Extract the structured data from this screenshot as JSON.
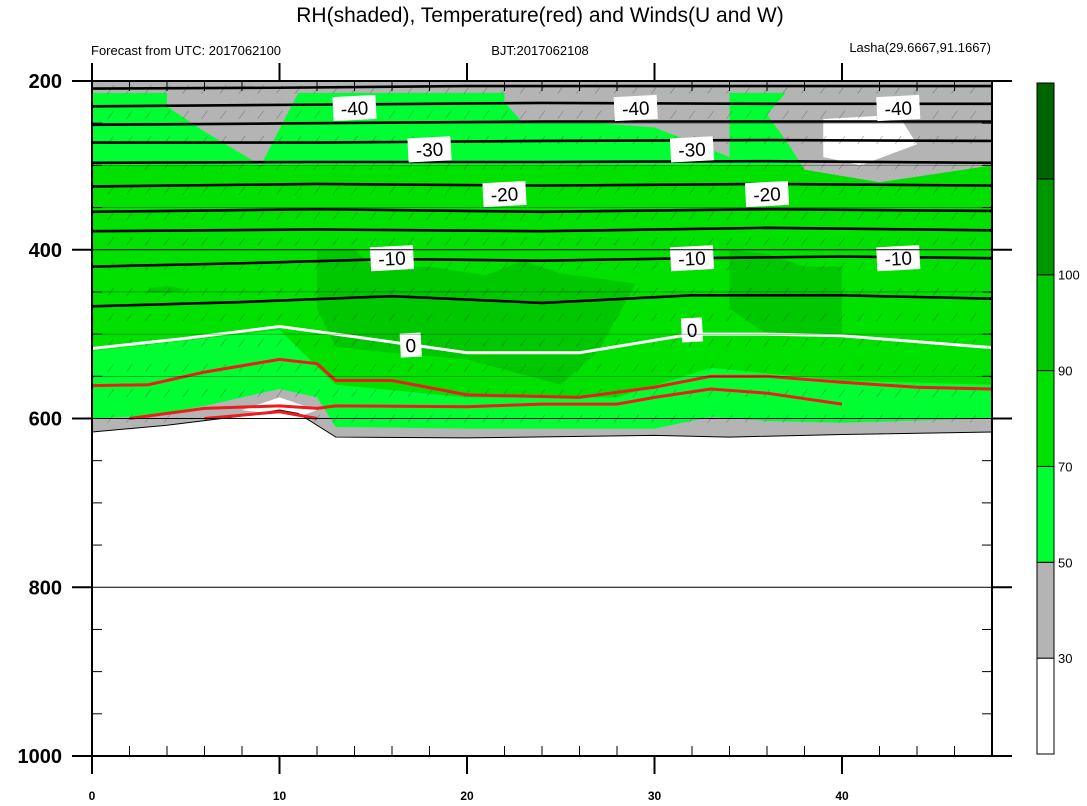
{
  "chart_data": {
    "type": "heatmap",
    "title": "RH(shaded), Temperature(red) and Winds(U and W)",
    "subtitle_left": "Forecast from UTC: 2017062100",
    "subtitle_center": "BJT:2017062108",
    "subtitle_right": "Lasha(29.6667,91.1667)",
    "xlim": [
      0,
      48
    ],
    "ylim": [
      1000,
      200
    ],
    "x_ticks": [
      "0",
      "10",
      "20",
      "30",
      "40"
    ],
    "y_ticks": [
      "200",
      "400",
      "600",
      "800",
      "1000"
    ],
    "colorbar": {
      "levels": [
        "30",
        "50",
        "70",
        "90",
        "100"
      ],
      "colors": [
        "#ffffff",
        "#b4b4b4",
        "#00ff32",
        "#00e100",
        "#00c800",
        "#009600",
        "#006400"
      ]
    },
    "surface_pressure": [
      {
        "x": 0,
        "p": 616
      },
      {
        "x": 4,
        "p": 608
      },
      {
        "x": 8,
        "p": 597
      },
      {
        "x": 10,
        "p": 590
      },
      {
        "x": 11,
        "p": 594
      },
      {
        "x": 12,
        "p": 608
      },
      {
        "x": 13,
        "p": 622
      },
      {
        "x": 20,
        "p": 623
      },
      {
        "x": 30,
        "p": 620
      },
      {
        "x": 34,
        "p": 622
      },
      {
        "x": 40,
        "p": 619
      },
      {
        "x": 48,
        "p": 616
      }
    ],
    "temperature_contours": [
      {
        "label": "-40",
        "points": [
          [
            0,
            209
          ],
          [
            10,
            208
          ],
          [
            20,
            206
          ],
          [
            30,
            206
          ],
          [
            40,
            206
          ],
          [
            48,
            206
          ]
        ],
        "label_x": 14,
        "label_p": 232
      },
      {
        "label": "",
        "points": [
          [
            0,
            230
          ],
          [
            12,
            228
          ],
          [
            24,
            226
          ],
          [
            36,
            227
          ],
          [
            48,
            227
          ]
        ]
      },
      {
        "label": "",
        "points": [
          [
            0,
            252
          ],
          [
            12,
            250
          ],
          [
            24,
            248
          ],
          [
            36,
            248
          ],
          [
            48,
            248
          ]
        ]
      },
      {
        "label": "-30",
        "points": [
          [
            0,
            273
          ],
          [
            12,
            273
          ],
          [
            24,
            271
          ],
          [
            36,
            270
          ],
          [
            48,
            271
          ]
        ],
        "label_x": 18,
        "label_p": 281
      },
      {
        "label": "",
        "points": [
          [
            0,
            297
          ],
          [
            12,
            296
          ],
          [
            24,
            296
          ],
          [
            36,
            295
          ],
          [
            48,
            297
          ]
        ]
      },
      {
        "label": "-20",
        "points": [
          [
            0,
            325
          ],
          [
            12,
            322
          ],
          [
            24,
            324
          ],
          [
            36,
            322
          ],
          [
            48,
            324
          ]
        ],
        "label_x": 22,
        "label_p": 334
      },
      {
        "label": "",
        "points": [
          [
            0,
            355
          ],
          [
            12,
            352
          ],
          [
            24,
            355
          ],
          [
            36,
            352
          ],
          [
            48,
            354
          ]
        ]
      },
      {
        "label": "",
        "points": [
          [
            0,
            378
          ],
          [
            12,
            376
          ],
          [
            24,
            378
          ],
          [
            36,
            374
          ],
          [
            48,
            377
          ]
        ]
      },
      {
        "label": "-10",
        "points": [
          [
            0,
            420
          ],
          [
            8,
            416
          ],
          [
            16,
            411
          ],
          [
            24,
            413
          ],
          [
            32,
            410
          ],
          [
            40,
            408
          ],
          [
            48,
            410
          ]
        ],
        "label_x": 16,
        "label_p": 410
      },
      {
        "label": "",
        "points": [
          [
            0,
            467
          ],
          [
            8,
            462
          ],
          [
            16,
            455
          ],
          [
            24,
            463
          ],
          [
            32,
            454
          ],
          [
            40,
            454
          ],
          [
            48,
            458
          ]
        ]
      }
    ],
    "zero_isotherm": {
      "label": "0",
      "points": [
        [
          0,
          517
        ],
        [
          5,
          505
        ],
        [
          10,
          491
        ],
        [
          13,
          500
        ],
        [
          20,
          522
        ],
        [
          26,
          522
        ],
        [
          32,
          500
        ],
        [
          36,
          500
        ],
        [
          40,
          502
        ],
        [
          48,
          516
        ]
      ],
      "label_x": 17,
      "label_p": 513
    },
    "red_contours": [
      {
        "points": [
          [
            0,
            561
          ],
          [
            3,
            560
          ],
          [
            6,
            545
          ],
          [
            10,
            530
          ],
          [
            12,
            535
          ],
          [
            13,
            555
          ],
          [
            16,
            555
          ],
          [
            20,
            572
          ],
          [
            26,
            575
          ],
          [
            30,
            563
          ],
          [
            33,
            550
          ],
          [
            36,
            550
          ],
          [
            40,
            557
          ],
          [
            44,
            563
          ],
          [
            48,
            565
          ]
        ]
      },
      {
        "points": [
          [
            2,
            600
          ],
          [
            6,
            588
          ],
          [
            10,
            585
          ],
          [
            12,
            588
          ],
          [
            13,
            585
          ],
          [
            20,
            586
          ],
          [
            24,
            583
          ],
          [
            28,
            583
          ],
          [
            30,
            575
          ],
          [
            33,
            565
          ],
          [
            36,
            570
          ],
          [
            40,
            583
          ]
        ]
      },
      {
        "points": [
          [
            6,
            600
          ],
          [
            10,
            592
          ],
          [
            12,
            600
          ]
        ]
      }
    ],
    "contour_labels_right": [
      {
        "label": "-40",
        "x": 29,
        "p": 232
      },
      {
        "label": "-40",
        "x": 43,
        "p": 232
      },
      {
        "label": "-30",
        "x": 32,
        "p": 281
      },
      {
        "label": "-20",
        "x": 36,
        "p": 334
      },
      {
        "label": "-10",
        "x": 32,
        "p": 410
      },
      {
        "label": "-10",
        "x": 43,
        "p": 410
      },
      {
        "label": "0",
        "x": 32,
        "p": 495
      }
    ]
  }
}
